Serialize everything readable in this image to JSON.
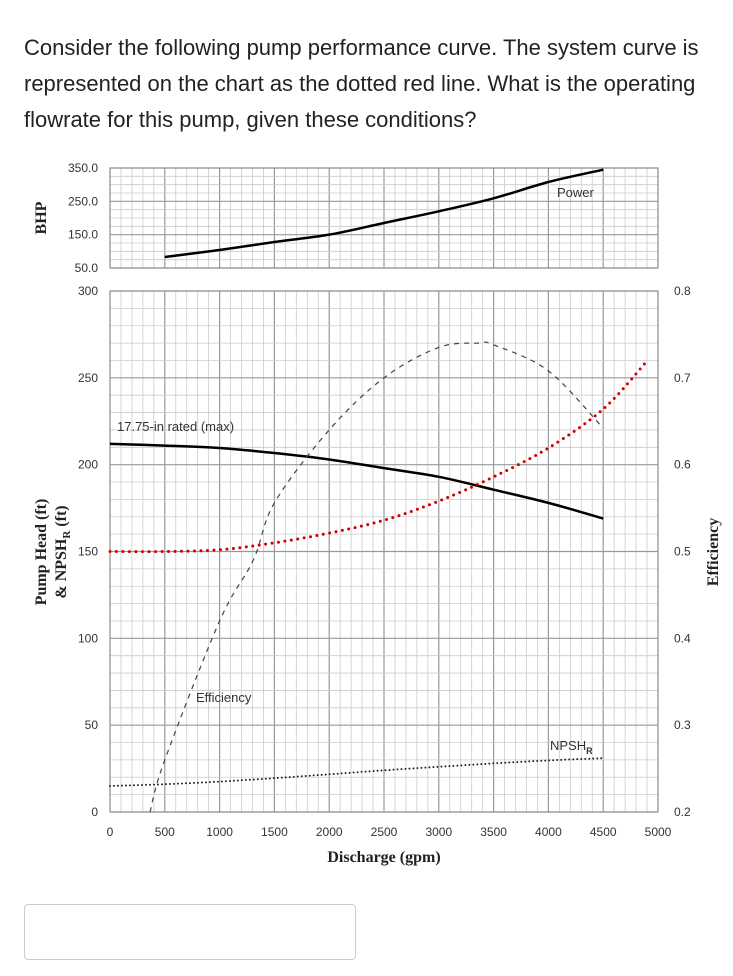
{
  "question": "Consider the following pump performance curve.  The system curve is represented on the chart as the dotted red line.  What is the operating flowrate for this pump, given these conditions?",
  "answer_input": {
    "value": "",
    "placeholder": ""
  },
  "chart_data": [
    {
      "type": "line",
      "ylabel": "BHP",
      "ylim": [
        50,
        350
      ],
      "yticks": [
        "350.0",
        "250.0",
        "150.0",
        "50.0"
      ],
      "xlim": [
        0,
        5000
      ],
      "grid": true,
      "series": [
        {
          "name": "Power",
          "color": "#000000",
          "style": "solid",
          "x": [
            500,
            1000,
            1500,
            2000,
            2500,
            3000,
            3500,
            4000,
            4500
          ],
          "y": [
            83,
            104,
            128,
            150,
            185,
            220,
            259,
            308,
            345
          ]
        }
      ]
    },
    {
      "type": "line",
      "xlabel": "Discharge (gpm)",
      "ylabel_lines": [
        "Pump Head (ft)",
        "& NPSH",
        "R",
        " (ft)"
      ],
      "y2label": "Efficiency",
      "xlim": [
        0,
        5000
      ],
      "ylim": [
        0,
        300
      ],
      "y2lim": [
        0.2,
        0.8
      ],
      "xticks": [
        "0",
        "500",
        "1000",
        "1500",
        "2000",
        "2500",
        "3000",
        "3500",
        "4000",
        "4500",
        "5000"
      ],
      "yticks": [
        "300",
        "250",
        "200",
        "150",
        "100",
        "50",
        "0"
      ],
      "y2ticks": [
        "0.8",
        "0.7",
        "0.6",
        "0.5",
        "0.4",
        "0.3",
        "0.2"
      ],
      "grid": true,
      "series": [
        {
          "name": "17.75-in rated (max)",
          "color": "#000000",
          "style": "solid",
          "axis": "left",
          "x": [
            0,
            500,
            1000,
            1500,
            2000,
            2500,
            3000,
            3500,
            4000,
            4500
          ],
          "y": [
            212,
            211,
            209.6,
            206.7,
            203,
            198,
            193,
            185.6,
            178,
            169
          ]
        },
        {
          "name": "",
          "color": "#cc0000",
          "style": "dotted",
          "axis": "left",
          "x": [
            0,
            500,
            1000,
            1500,
            2000,
            2500,
            3000,
            3500,
            4000,
            4500,
            4885
          ],
          "y": [
            150,
            150,
            151,
            155,
            160.6,
            168,
            179,
            193,
            209.6,
            232,
            258.6
          ]
        },
        {
          "name": "Efficiency",
          "color": "#444444",
          "style": "dashed",
          "axis": "right",
          "x": [
            365,
            500,
            1000,
            1307,
            1500,
            2000,
            2500,
            3000,
            3366,
            3500,
            4000,
            4500
          ],
          "y": [
            0.2,
            0.26,
            0.42,
            0.49,
            0.556,
            0.64,
            0.7,
            0.735,
            0.74,
            0.738,
            0.708,
            0.642
          ]
        },
        {
          "name": "NPSH",
          "subscript": "R",
          "color": "#222222",
          "style": "dotted",
          "axis": "left",
          "x": [
            0,
            500,
            1000,
            1500,
            2000,
            2500,
            3000,
            3500,
            4000,
            4500
          ],
          "y": [
            15,
            16,
            17.5,
            19.5,
            21.7,
            24,
            26,
            28,
            29.7,
            31
          ]
        }
      ]
    }
  ]
}
